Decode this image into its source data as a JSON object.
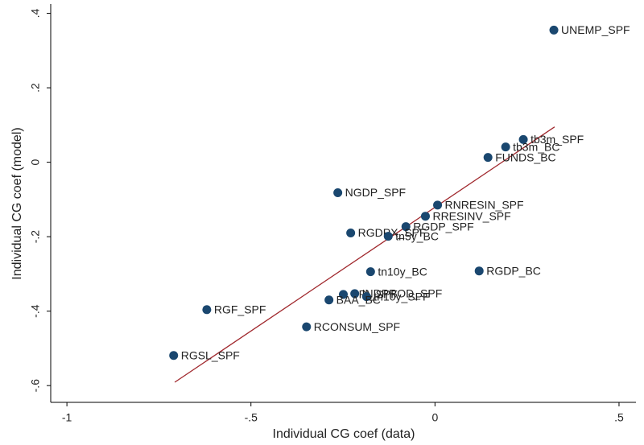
{
  "chart_data": {
    "type": "scatter",
    "xlabel": "Individual CG coef (data)",
    "ylabel": "Individual CG coef (model)",
    "xlim": [
      -1.044,
      0.546
    ],
    "ylim": [
      -0.645,
      0.425
    ],
    "xticks": [
      -1,
      {
        "value": -0.5,
        "label": "-.5"
      },
      0,
      {
        "value": 0.5,
        "label": ".5"
      }
    ],
    "yticks": [
      {
        "value": -0.6,
        "label": "-.6"
      },
      {
        "value": -0.4,
        "label": "-.4"
      },
      {
        "value": -0.2,
        "label": "-.2"
      },
      0,
      {
        "value": 0.2,
        "label": ".2"
      },
      {
        "value": 0.4,
        "label": ".4"
      }
    ],
    "color": "#1a476f",
    "fit_color": "#a0282d",
    "labels": [
      "UNEMP_SPF",
      "tb3m_SPF",
      "tb3m_BC",
      "FUNDS_BC",
      "NGDP_SPF",
      "RNRESIN_SPF",
      "RRESINV_SPF",
      "RGDP_SPF",
      "RGDPX_SPF",
      "tn5y_BC",
      "tn10y_BC",
      "RGDP_BC",
      "CPI_SPF",
      "INDPROD_SPF",
      "tn10y_SPF",
      "BAA_BC",
      "RGF_SPF",
      "RCONSUM_SPF",
      "RGSL_SPF"
    ],
    "x": [
      0.323,
      0.24,
      0.192,
      0.144,
      -0.264,
      0.007,
      -0.026,
      -0.079,
      -0.229,
      -0.127,
      -0.175,
      0.12,
      -0.249,
      -0.218,
      -0.186,
      -0.288,
      -0.62,
      -0.349,
      -0.71
    ],
    "y": [
      0.355,
      0.061,
      0.041,
      0.013,
      -0.082,
      -0.115,
      -0.145,
      -0.173,
      -0.19,
      -0.199,
      -0.294,
      -0.292,
      -0.355,
      -0.353,
      -0.361,
      -0.37,
      -0.396,
      -0.442,
      -0.519
    ],
    "fit": {
      "x": [
        -0.707,
        0.325
      ],
      "y": [
        -0.591,
        0.095
      ]
    }
  }
}
